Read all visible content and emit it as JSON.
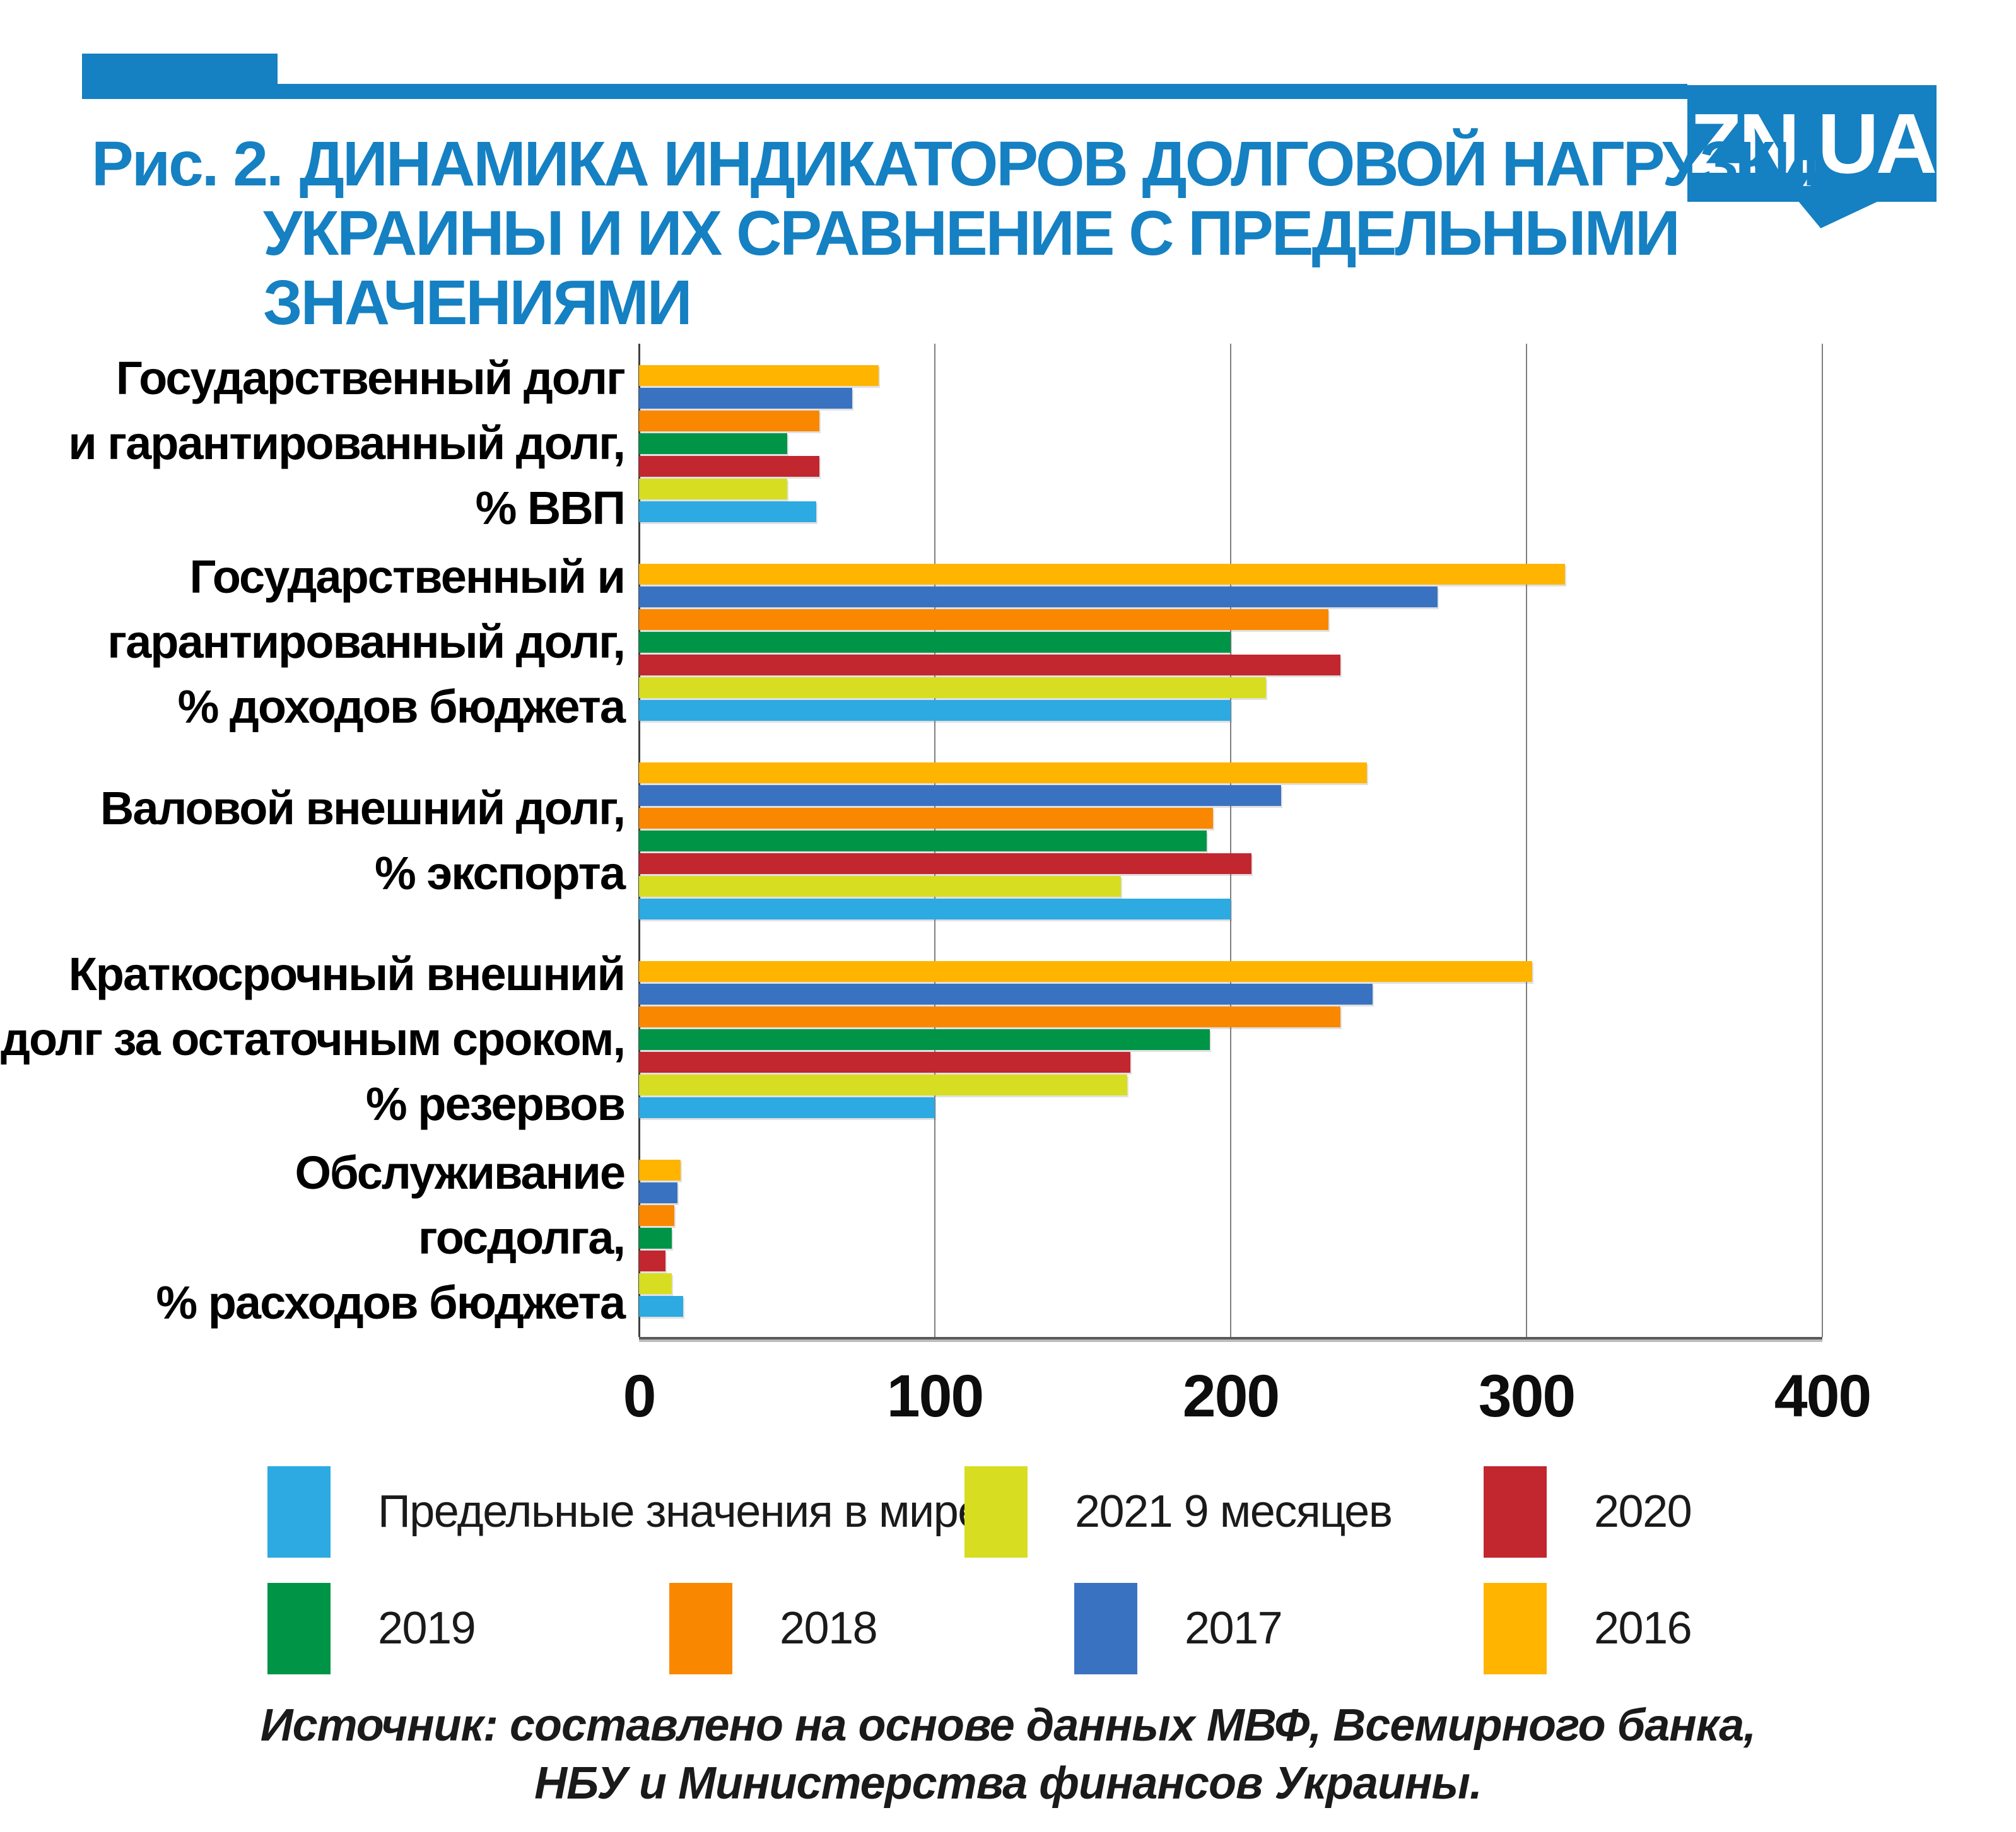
{
  "header": {
    "figure_label": "Рис. 2.",
    "title_lines": [
      "ДИНАМИКА ИНДИКАТОРОВ ДОЛГОВОЙ НАГРУЗКИ",
      "УКРАИНЫ И ИХ СРАВНЕНИЕ С ПРЕДЕЛЬНЫМИ",
      "ЗНАЧЕНИЯМИ"
    ],
    "logo_text": "ZN,UA"
  },
  "colors": {
    "accent_blue": "#1580C2",
    "grid_gray": "#7F7F7F",
    "axis_dark": "#404040",
    "text_dark": "#1A1A1A"
  },
  "chart_data": {
    "type": "bar",
    "orientation": "horizontal",
    "title": "Динамика индикаторов долговой нагрузки Украины и их сравнение с предельными значениями",
    "xlabel": "",
    "ylabel": "",
    "xlim": [
      0,
      400
    ],
    "xticks": [
      0,
      100,
      200,
      300,
      400
    ],
    "grid": true,
    "legend_position": "bottom",
    "categories": [
      {
        "lines": [
          "Государственный долг",
          "и гарантированный долг,",
          "% ВВП"
        ]
      },
      {
        "lines": [
          "Государственный и",
          "гарантированный долг,",
          "% доходов бюджета"
        ]
      },
      {
        "lines": [
          "Валовой внешний долг,",
          "% экспорта"
        ]
      },
      {
        "lines": [
          "Краткосрочный внешний",
          "долг за остаточным сроком,",
          "% резервов"
        ]
      },
      {
        "lines": [
          "Обслуживание",
          "госдолга,",
          "% расходов бюджета"
        ]
      }
    ],
    "series": [
      {
        "name": "2016",
        "color": "#FFB400",
        "values": [
          81,
          313,
          246,
          302,
          14
        ]
      },
      {
        "name": "2017",
        "color": "#3A72C2",
        "values": [
          72,
          270,
          217,
          248,
          13
        ]
      },
      {
        "name": "2018",
        "color": "#F98800",
        "values": [
          61,
          233,
          194,
          237,
          12
        ]
      },
      {
        "name": "2019",
        "color": "#009447",
        "values": [
          50,
          200,
          192,
          193,
          11
        ]
      },
      {
        "name": "2020",
        "color": "#C2262E",
        "values": [
          61,
          237,
          207,
          166,
          9
        ]
      },
      {
        "name": "2021 9 месяцев",
        "color": "#D7DE21",
        "values": [
          50,
          212,
          163,
          165,
          11
        ]
      },
      {
        "name": "Предельные значения в мире",
        "color": "#2CAAE1",
        "values": [
          60,
          200,
          200,
          100,
          15
        ]
      }
    ],
    "legend_rows": [
      [
        "Предельные значения в мире",
        "2021 9 месяцев",
        "2020"
      ],
      [
        "2019",
        "2018",
        "2017",
        "2016"
      ]
    ]
  },
  "source": {
    "line1": "Источник: составлено на основе данных МВФ, Всемирного банка,",
    "line2": "НБУ и Министерства финансов Украины."
  }
}
